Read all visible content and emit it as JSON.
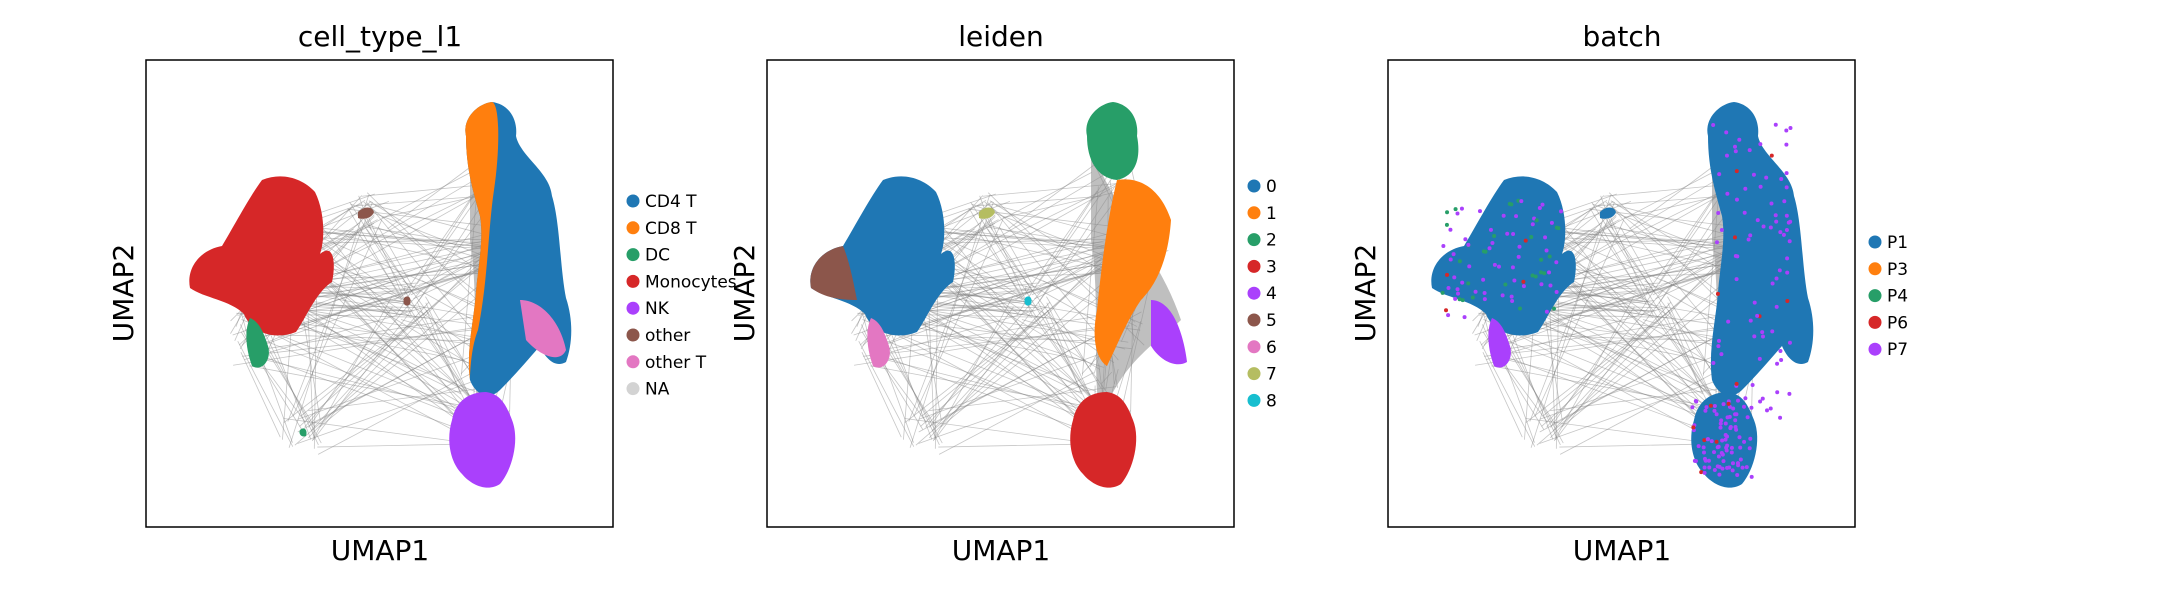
{
  "chart_data": [
    {
      "type": "scatter",
      "title": "cell_type_l1",
      "xlabel": "UMAP1",
      "ylabel": "UMAP2",
      "axis_ticks": false,
      "grid": false,
      "legend_position": "right",
      "edges_color": "#808080",
      "series": [
        {
          "name": "CD4 T",
          "color": "#1f77b4"
        },
        {
          "name": "CD8 T",
          "color": "#ff7f0e"
        },
        {
          "name": "DC",
          "color": "#279e68"
        },
        {
          "name": "Monocytes",
          "color": "#d62728"
        },
        {
          "name": "NK",
          "color": "#aa40fc"
        },
        {
          "name": "other",
          "color": "#8c564b"
        },
        {
          "name": "other T",
          "color": "#e377c2"
        },
        {
          "name": "NA",
          "color": "#d3d3d3"
        }
      ]
    },
    {
      "type": "scatter",
      "title": "leiden",
      "xlabel": "UMAP1",
      "ylabel": "UMAP2",
      "axis_ticks": false,
      "grid": false,
      "legend_position": "right",
      "edges_color": "#808080",
      "series": [
        {
          "name": "0",
          "color": "#1f77b4"
        },
        {
          "name": "1",
          "color": "#ff7f0e"
        },
        {
          "name": "2",
          "color": "#279e68"
        },
        {
          "name": "3",
          "color": "#d62728"
        },
        {
          "name": "4",
          "color": "#aa40fc"
        },
        {
          "name": "5",
          "color": "#8c564b"
        },
        {
          "name": "6",
          "color": "#e377c2"
        },
        {
          "name": "7",
          "color": "#b5bd61"
        },
        {
          "name": "8",
          "color": "#17becf"
        }
      ]
    },
    {
      "type": "scatter",
      "title": "batch",
      "xlabel": "UMAP1",
      "ylabel": "UMAP2",
      "axis_ticks": false,
      "grid": false,
      "legend_position": "right",
      "edges_color": "#808080",
      "series": [
        {
          "name": "P1",
          "color": "#1f77b4"
        },
        {
          "name": "P3",
          "color": "#ff7f0e"
        },
        {
          "name": "P4",
          "color": "#279e68"
        },
        {
          "name": "P6",
          "color": "#d62728"
        },
        {
          "name": "P7",
          "color": "#aa40fc"
        }
      ]
    }
  ]
}
